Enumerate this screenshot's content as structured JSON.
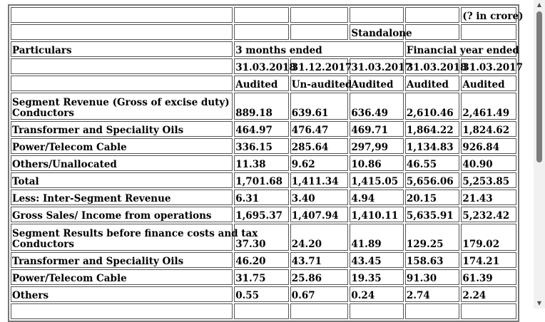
{
  "header": {
    "unit_note": "(? in crore)",
    "basis": "Standalone",
    "particulars_label": "Particulars",
    "period_group_1": "3 months ended",
    "period_group_2": "Financial year ended",
    "dates": [
      "31.03.2018",
      "31.12.2017",
      "31.03.2017",
      "31.03.2018",
      "31.03.2017"
    ],
    "status": [
      "Audited",
      "Un-audited",
      "Audited",
      "Audited",
      "Audited"
    ]
  },
  "section_revenue": {
    "title": "Segment Revenue (Gross of excise duty)",
    "rows": [
      {
        "label": "Conductors",
        "values": [
          "889.18",
          "639.61",
          "636.49",
          "2,610.46",
          "2,461.49"
        ]
      },
      {
        "label": "Transformer and Speciality Oils",
        "values": [
          "464.97",
          "476.47",
          "469.71",
          "1,864.22",
          "1,824.62"
        ]
      },
      {
        "label": "Power/Telecom Cable",
        "values": [
          "336.15",
          "285.64",
          "297,99",
          "1,134.83",
          "926.84"
        ]
      },
      {
        "label": "Others/Unallocated",
        "values": [
          "11.38",
          "9.62",
          "10.86",
          "46.55",
          "40.90"
        ]
      },
      {
        "label": "Total",
        "values": [
          "1,701.68",
          "1,411.34",
          "1,415.05",
          "5,656.06",
          "5,253.85"
        ]
      },
      {
        "label": "Less: Inter-Segment Revenue",
        "values": [
          "6.31",
          "3.40",
          "4.94",
          "20.15",
          "21.43"
        ]
      },
      {
        "label": "Gross Sales/ Income from operations",
        "values": [
          "1,695.37",
          "1,407.94",
          "1,410.11",
          "5,635.91",
          "5,232.42"
        ]
      }
    ]
  },
  "section_results": {
    "title": "Segment Results before finance costs and tax",
    "rows": [
      {
        "label": "Conductors",
        "values": [
          "37.30",
          "24.20",
          "41.89",
          "129.25",
          "179.02"
        ]
      },
      {
        "label": "Transformer and Speciality Oils",
        "values": [
          "46.20",
          "43.71",
          "43.45",
          "158.63",
          "174.21"
        ]
      },
      {
        "label": "Power/Telecom Cable",
        "values": [
          "31.75",
          "25.86",
          "19.35",
          "91.30",
          "61.39"
        ]
      },
      {
        "label": "Others",
        "values": [
          "0.55",
          "0.67",
          "0.24",
          "2.74",
          "2.24"
        ]
      }
    ]
  },
  "scrollbar": {
    "up_icon": "▲",
    "down_icon": "▼"
  }
}
